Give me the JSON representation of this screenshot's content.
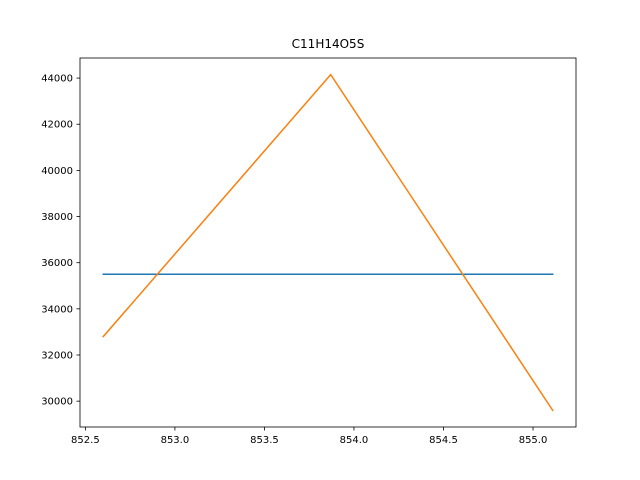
{
  "chart_data": {
    "type": "line",
    "title": "C11H14O5S",
    "xlabel": "",
    "ylabel": "",
    "xlim": [
      852.47,
      855.24
    ],
    "ylim": [
      28880,
      44870
    ],
    "xticks": [
      852.5,
      853.0,
      853.5,
      854.0,
      854.5,
      855.0
    ],
    "xtick_labels": [
      "852.5",
      "853.0",
      "853.5",
      "854.0",
      "854.5",
      "855.0"
    ],
    "yticks": [
      30000,
      32000,
      34000,
      36000,
      38000,
      40000,
      42000,
      44000
    ],
    "ytick_labels": [
      "30000",
      "32000",
      "34000",
      "36000",
      "38000",
      "40000",
      "42000",
      "44000"
    ],
    "grid": false,
    "series": [
      {
        "color": "#1f77b4",
        "x": [
          852.6,
          855.11
        ],
        "y": [
          35500,
          35500
        ]
      },
      {
        "color": "#ff7f0e",
        "x": [
          852.6,
          853.87,
          855.11
        ],
        "y": [
          32800,
          44150,
          29600
        ]
      }
    ]
  }
}
